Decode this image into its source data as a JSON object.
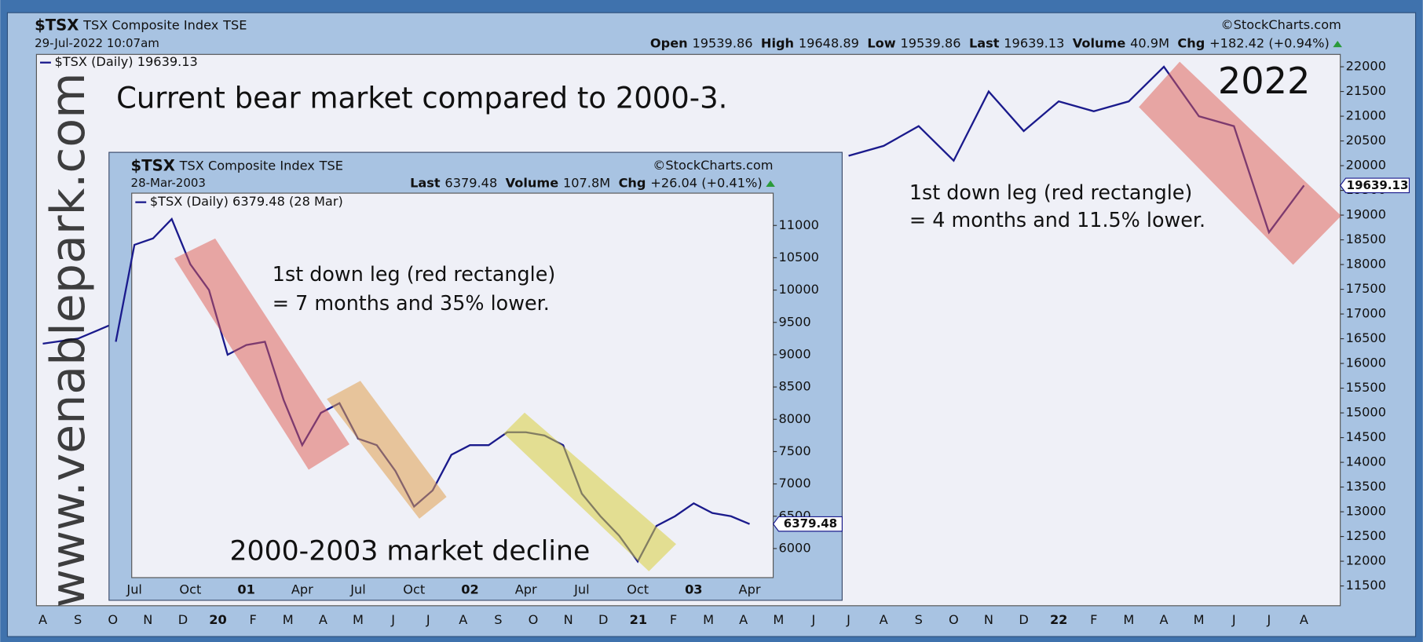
{
  "chart_data": [
    {
      "type": "line",
      "header": {
        "symbol": "$TSX",
        "name": "TSX Composite Index",
        "exchange": "TSE",
        "date": "29-Jul-2022 10:07am",
        "source": "©StockCharts.com",
        "quote": [
          {
            "label": "Open",
            "value": "19539.86"
          },
          {
            "label": "High",
            "value": "19648.89"
          },
          {
            "label": "Low",
            "value": "19539.86"
          },
          {
            "label": "Last",
            "value": "19639.13"
          },
          {
            "label": "Volume",
            "value": "40.9M"
          },
          {
            "label": "Chg",
            "value": "+182.42 (+0.94%)"
          }
        ]
      },
      "title": "Current bear market compared to 2000-3.",
      "annotations": [
        "2022",
        "1st down leg (red rectangle)",
        "= 4 months and 11.5% lower."
      ],
      "watermark": "www.venablepark.com",
      "categories": [
        "A",
        "S",
        "O",
        "N",
        "D",
        "20",
        "F",
        "M",
        "A",
        "M",
        "J",
        "J",
        "A",
        "S",
        "O",
        "N",
        "D",
        "21",
        "F",
        "M",
        "A",
        "M",
        "J",
        "J",
        "A",
        "S",
        "O",
        "N",
        "D",
        "22",
        "F",
        "M",
        "A",
        "M",
        "J",
        "J",
        "A"
      ],
      "series": [
        {
          "name": "$TSX (Daily) 19639.13",
          "color": "#1a1a8c",
          "values": [
            16400,
            16500,
            16800,
            null,
            null,
            null,
            null,
            null,
            null,
            null,
            null,
            null,
            null,
            null,
            null,
            null,
            null,
            null,
            null,
            null,
            null,
            null,
            null,
            20200,
            20400,
            20800,
            20100,
            21500,
            20700,
            21300,
            21100,
            21300,
            22000,
            21000,
            20800,
            18650,
            19600
          ]
        }
      ],
      "last_tag": "19639.13",
      "ylim": [
        11100,
        22250
      ],
      "yticks": [
        22000,
        21500,
        21000,
        20500,
        20000,
        19500,
        19000,
        18500,
        18000,
        17500,
        17000,
        16500,
        16000,
        15500,
        15000,
        14500,
        14000,
        13500,
        13000,
        12500,
        12000,
        11500
      ]
    },
    {
      "type": "line",
      "header": {
        "symbol": "$TSX",
        "name": "TSX Composite Index",
        "exchange": "TSE",
        "date": "28-Mar-2003",
        "source": "©StockCharts.com",
        "quote": [
          {
            "label": "Last",
            "value": "6379.48"
          },
          {
            "label": "Volume",
            "value": "107.8M"
          },
          {
            "label": "Chg",
            "value": "+26.04 (+0.41%)"
          }
        ]
      },
      "annotations": [
        "1st down leg (red rectangle)",
        "= 7 months and 35% lower.",
        "2000-2003 market decline"
      ],
      "categories": [
        null,
        "Jul",
        null,
        null,
        "Oct",
        null,
        null,
        "01",
        null,
        null,
        "Apr",
        null,
        null,
        "Jul",
        null,
        null,
        "Oct",
        null,
        null,
        "02",
        null,
        null,
        "Apr",
        null,
        null,
        "Jul",
        null,
        null,
        "Oct",
        null,
        null,
        "03",
        null,
        null,
        "Apr"
      ],
      "series": [
        {
          "name": "$TSX (Daily) 6379.48 (28 Mar)",
          "color": "#1a1a8c",
          "values": [
            9200,
            10700,
            10800,
            11100,
            10400,
            10000,
            9000,
            9150,
            9200,
            8300,
            7600,
            8100,
            8250,
            7700,
            7600,
            7200,
            6650,
            6900,
            7450,
            7600,
            7600,
            7800,
            7800,
            7750,
            7600,
            6850,
            6500,
            6200,
            5800,
            6350,
            6500,
            6700,
            6550,
            6500,
            6380
          ]
        }
      ],
      "last_tag": "6379.48",
      "ylim": [
        5550,
        11500
      ],
      "yticks": [
        11000,
        10500,
        10000,
        9500,
        9000,
        8500,
        8000,
        7500,
        7000,
        6500,
        6000
      ]
    }
  ]
}
